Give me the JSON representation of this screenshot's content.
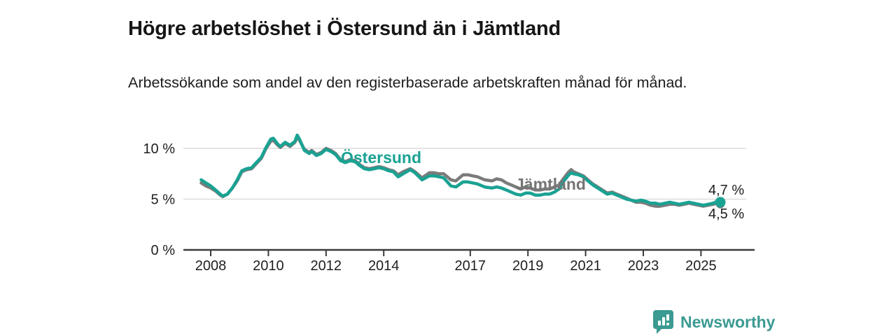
{
  "header": {
    "title": "Högre arbetslöshet i Östersund än i Jämtland",
    "subtitle": "Arbetssökande som andel av den registerbaserade arbetskraften månad för månad."
  },
  "footer": {
    "brand": "Newsworthy"
  },
  "colors": {
    "ostersund": "#1aa293",
    "jamtland": "#7b7b7b",
    "axis": "#3b3b3b",
    "grid": "#dcdcdc",
    "text": "#1d1d1d",
    "brand_teal": "#3b9a92"
  },
  "chart_data": {
    "type": "line",
    "title": "Högre arbetslöshet i Östersund än i Jämtland",
    "xlabel": "",
    "ylabel": "",
    "ylim": [
      0,
      11.5
    ],
    "xlim": [
      2007.5,
      2026.2
    ],
    "grid": "horizontal",
    "legend": "inline-labels",
    "x": [
      2007.67,
      2007.83,
      2008,
      2008.17,
      2008.33,
      2008.42,
      2008.58,
      2008.75,
      2008.92,
      2009.08,
      2009.25,
      2009.42,
      2009.58,
      2009.75,
      2009.92,
      2010.08,
      2010.17,
      2010.33,
      2010.42,
      2010.58,
      2010.75,
      2010.92,
      2011,
      2011.08,
      2011.25,
      2011.42,
      2011.5,
      2011.67,
      2011.83,
      2012,
      2012.17,
      2012.33,
      2012.5,
      2012.67,
      2012.83,
      2013,
      2013.17,
      2013.33,
      2013.5,
      2013.67,
      2013.83,
      2014,
      2014.17,
      2014.33,
      2014.5,
      2014.67,
      2014.92,
      2015.08,
      2015.33,
      2015.58,
      2015.75,
      2015.92,
      2016.08,
      2016.33,
      2016.5,
      2016.75,
      2016.92,
      2017.08,
      2017.25,
      2017.5,
      2017.75,
      2017.92,
      2018.08,
      2018.25,
      2018.42,
      2018.58,
      2018.75,
      2018.92,
      2019.08,
      2019.25,
      2019.42,
      2019.58,
      2019.75,
      2019.92,
      2020.08,
      2020.25,
      2020.42,
      2020.5,
      2020.58,
      2020.75,
      2020.92,
      2021.08,
      2021.25,
      2021.42,
      2021.58,
      2021.75,
      2021.92,
      2022.08,
      2022.25,
      2022.42,
      2022.58,
      2022.75,
      2022.92,
      2023.08,
      2023.25,
      2023.42,
      2023.58,
      2023.75,
      2023.92,
      2024.08,
      2024.25,
      2024.42,
      2024.58,
      2024.75,
      2024.92,
      2025.08,
      2025.25,
      2025.42,
      2025.58,
      2025.67
    ],
    "series": [
      {
        "name": "Östersund",
        "color_key": "ostersund",
        "end_label": "4,7 %",
        "values": [
          6.9,
          6.6,
          6.3,
          5.9,
          5.5,
          5.3,
          5.5,
          6.1,
          6.9,
          7.8,
          8.0,
          8.1,
          8.6,
          9.1,
          10.1,
          10.9,
          11.0,
          10.4,
          10.2,
          10.6,
          10.3,
          10.7,
          11.3,
          10.9,
          9.8,
          9.5,
          9.7,
          9.3,
          9.5,
          9.9,
          9.7,
          9.4,
          8.8,
          8.6,
          8.8,
          8.7,
          8.3,
          8.0,
          7.9,
          8.0,
          8.1,
          8.0,
          7.8,
          7.7,
          7.2,
          7.5,
          7.9,
          7.6,
          6.9,
          7.3,
          7.3,
          7.2,
          7.1,
          6.3,
          6.2,
          6.7,
          6.7,
          6.6,
          6.5,
          6.2,
          6.1,
          6.2,
          6.1,
          5.9,
          5.7,
          5.5,
          5.4,
          5.6,
          5.6,
          5.4,
          5.4,
          5.5,
          5.5,
          5.7,
          6.0,
          6.8,
          7.4,
          7.6,
          7.5,
          7.4,
          7.2,
          6.8,
          6.4,
          6.1,
          5.8,
          5.5,
          5.6,
          5.4,
          5.2,
          5.0,
          4.9,
          4.8,
          4.9,
          4.8,
          4.6,
          4.6,
          4.5,
          4.6,
          4.7,
          4.6,
          4.5,
          4.6,
          4.7,
          4.6,
          4.5,
          4.4,
          4.5,
          4.6,
          4.8,
          4.7
        ]
      },
      {
        "name": "Jämtland",
        "color_key": "jamtland",
        "end_label": "4,5 %",
        "values": [
          6.6,
          6.3,
          6.1,
          5.8,
          5.4,
          5.25,
          5.5,
          6.1,
          6.8,
          7.7,
          7.9,
          8.0,
          8.5,
          9.0,
          10.0,
          10.7,
          10.8,
          10.3,
          10.1,
          10.5,
          10.2,
          10.6,
          11.1,
          10.8,
          9.9,
          9.6,
          9.8,
          9.4,
          9.6,
          10.0,
          9.8,
          9.5,
          8.9,
          8.7,
          8.9,
          8.8,
          8.4,
          8.1,
          8.0,
          8.1,
          8.2,
          8.1,
          7.9,
          7.8,
          7.4,
          7.7,
          8.0,
          7.7,
          7.1,
          7.6,
          7.6,
          7.5,
          7.5,
          6.9,
          6.8,
          7.4,
          7.4,
          7.3,
          7.2,
          6.9,
          6.8,
          7.0,
          6.9,
          6.6,
          6.4,
          6.2,
          6.0,
          6.2,
          6.1,
          5.9,
          5.9,
          6.0,
          6.0,
          6.2,
          6.4,
          7.1,
          7.7,
          7.9,
          7.7,
          7.5,
          7.3,
          6.9,
          6.5,
          6.2,
          5.9,
          5.6,
          5.7,
          5.5,
          5.3,
          5.1,
          4.9,
          4.7,
          4.7,
          4.6,
          4.4,
          4.3,
          4.3,
          4.4,
          4.5,
          4.5,
          4.4,
          4.5,
          4.6,
          4.5,
          4.4,
          4.3,
          4.4,
          4.5,
          4.6,
          4.5
        ]
      }
    ],
    "x_ticks": [
      {
        "v": 2008,
        "label": "2008"
      },
      {
        "v": 2010,
        "label": "2010"
      },
      {
        "v": 2012,
        "label": "2012"
      },
      {
        "v": 2014,
        "label": "2014"
      },
      {
        "v": 2017,
        "label": "2017"
      },
      {
        "v": 2019,
        "label": "2019"
      },
      {
        "v": 2021,
        "label": "2021"
      },
      {
        "v": 2023,
        "label": "2023"
      },
      {
        "v": 2025,
        "label": "2025"
      }
    ],
    "y_ticks": [
      {
        "v": 0,
        "label": "0 %"
      },
      {
        "v": 5,
        "label": "5 %"
      },
      {
        "v": 10,
        "label": "10 %"
      }
    ]
  }
}
